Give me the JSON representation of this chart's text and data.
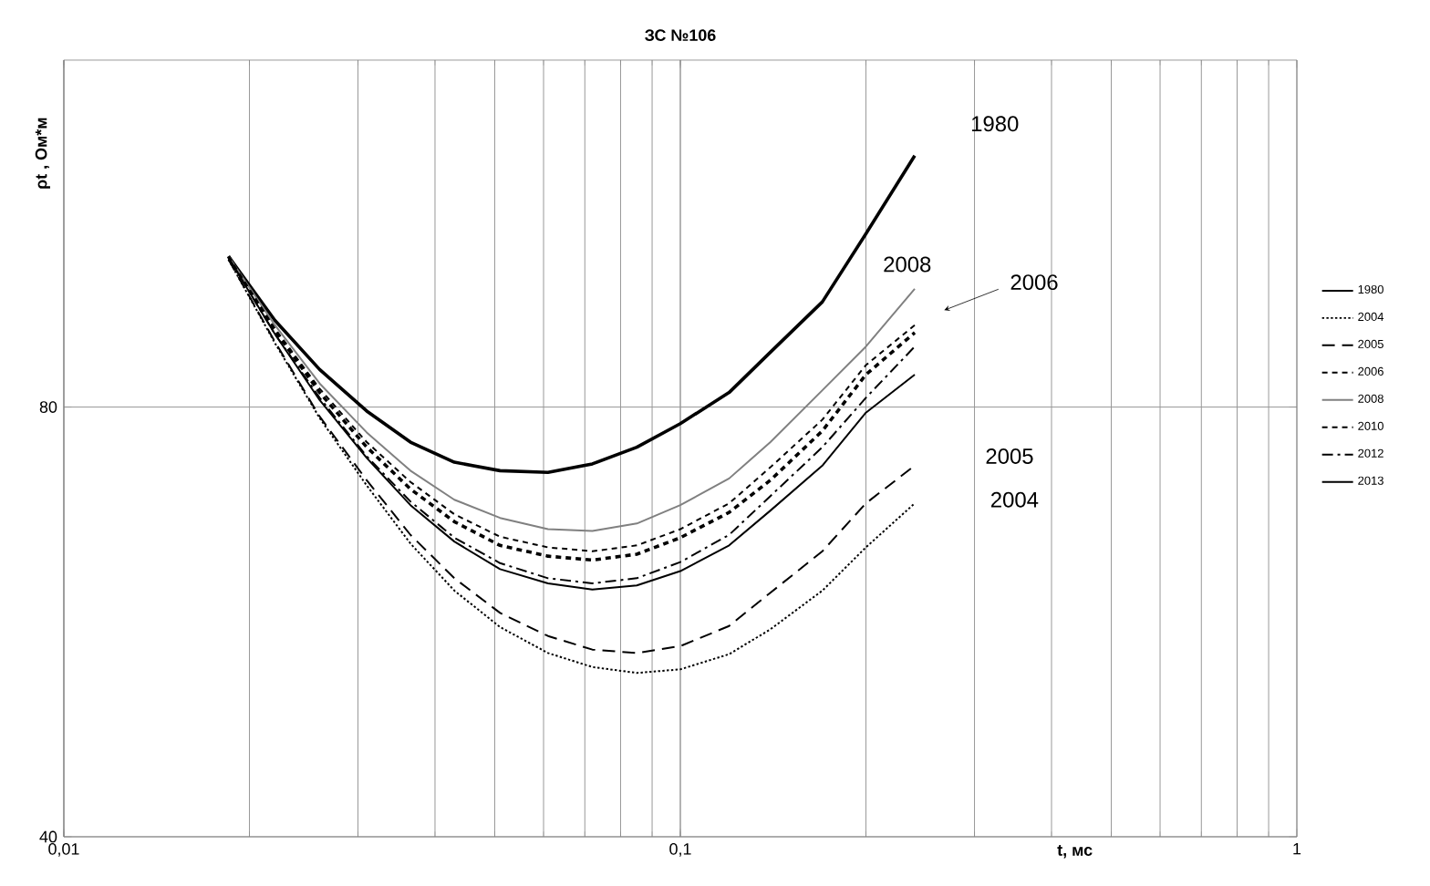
{
  "chart_data": {
    "type": "line",
    "title": "ЗС №106",
    "xlabel": "t, мс",
    "ylabel": "ρt , Ом*м",
    "log": "xy",
    "grid": true,
    "legend": "right",
    "marker": "none",
    "x": [
      0.0185,
      0.022,
      0.026,
      0.031,
      0.0365,
      0.043,
      0.051,
      0.061,
      0.072,
      0.085,
      0.1,
      0.12,
      0.14,
      0.17,
      0.2,
      0.24
    ],
    "xlim": [
      0.01,
      1
    ],
    "xticks": [
      {
        "value": 0.01,
        "label": "0,01"
      },
      {
        "value": 0.1,
        "label": "0,1"
      },
      {
        "value": 1,
        "label": "1"
      }
    ],
    "ylim": [
      40,
      140
    ],
    "yticks": [
      40,
      80
    ],
    "series": [
      {
        "name": "1980",
        "color": "#000000",
        "line_style": "solid",
        "values": [
          102,
          92,
          85,
          79.5,
          75.6,
          73.2,
          72.2,
          72,
          73,
          75,
          77.9,
          81.9,
          87.4,
          94.8,
          105.8,
          120
        ]
      },
      {
        "name": "2004",
        "color": "#000000",
        "line_style": "dotted",
        "values": [
          101.5,
          88.7,
          78.6,
          70.5,
          64.2,
          59.5,
          56.1,
          53.8,
          52.6,
          52.1,
          52.4,
          53.7,
          55.9,
          59.5,
          63.8,
          68.5
        ]
      },
      {
        "name": "2005",
        "color": "#000000",
        "line_style": "longdash",
        "values": [
          101.5,
          88.9,
          78.8,
          71.1,
          65.1,
          60.7,
          57.4,
          55.3,
          54.1,
          53.8,
          54.4,
          56.2,
          59.3,
          63.4,
          68.5,
          72.8
        ]
      },
      {
        "name": "2006",
        "color": "#000000",
        "line_style": "dashed",
        "values": [
          102,
          90.5,
          81.9,
          75.0,
          70.1,
          66.5,
          64.0,
          62.9,
          62.5,
          63.1,
          64.8,
          67.5,
          71.1,
          77.0,
          84.3,
          90.2
        ]
      },
      {
        "name": "2008",
        "color": "#808080",
        "line_style": "solid",
        "values": [
          102,
          91.3,
          83.1,
          76.8,
          72.2,
          68.9,
          66.9,
          65.7,
          65.5,
          66.3,
          68.3,
          71.3,
          75.6,
          82.2,
          88.2,
          96.8
        ]
      },
      {
        "name": "2010",
        "color": "#000000",
        "line_style": "dashed",
        "values": [
          102,
          90.8,
          82.4,
          75.6,
          70.9,
          67.3,
          64.9,
          63.8,
          63.4,
          64.0,
          65.7,
          68.5,
          72.6,
          78.4,
          85.6,
          91.3
        ]
      },
      {
        "name": "2012",
        "color": "#000000",
        "line_style": "dashdot",
        "values": [
          101.8,
          90.0,
          81.2,
          73.9,
          68.7,
          64.8,
          62.2,
          60.7,
          60.2,
          60.7,
          62.3,
          65.1,
          69.3,
          75.0,
          81.2,
          88.2
        ]
      },
      {
        "name": "2013",
        "color": "#000000",
        "line_style": "solid",
        "values": [
          101.8,
          90.0,
          80.9,
          73.7,
          68.3,
          64.4,
          61.6,
          60.2,
          59.6,
          60.0,
          61.4,
          64.0,
          67.7,
          72.8,
          79.3,
          84.3
        ]
      }
    ],
    "annotations": [
      "1980",
      "2008",
      "2006",
      "2005",
      "2004"
    ]
  }
}
